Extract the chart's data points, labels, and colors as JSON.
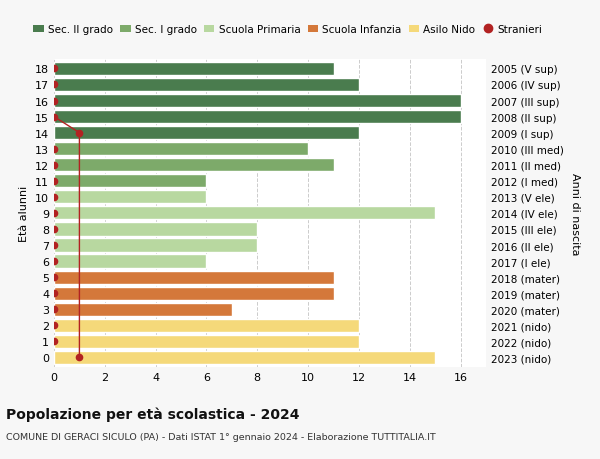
{
  "ages": [
    18,
    17,
    16,
    15,
    14,
    13,
    12,
    11,
    10,
    9,
    8,
    7,
    6,
    5,
    4,
    3,
    2,
    1,
    0
  ],
  "years": [
    "2005 (V sup)",
    "2006 (IV sup)",
    "2007 (III sup)",
    "2008 (II sup)",
    "2009 (I sup)",
    "2010 (III med)",
    "2011 (II med)",
    "2012 (I med)",
    "2013 (V ele)",
    "2014 (IV ele)",
    "2015 (III ele)",
    "2016 (II ele)",
    "2017 (I ele)",
    "2018 (mater)",
    "2019 (mater)",
    "2020 (mater)",
    "2021 (nido)",
    "2022 (nido)",
    "2023 (nido)"
  ],
  "bar_values": [
    11,
    12,
    16,
    16,
    12,
    10,
    11,
    6,
    6,
    15,
    8,
    8,
    6,
    11,
    11,
    7,
    12,
    12,
    15
  ],
  "bar_colors": [
    "#4a7c4e",
    "#4a7c4e",
    "#4a7c4e",
    "#4a7c4e",
    "#4a7c4e",
    "#7daa6a",
    "#7daa6a",
    "#7daa6a",
    "#b8d8a0",
    "#b8d8a0",
    "#b8d8a0",
    "#b8d8a0",
    "#b8d8a0",
    "#d4783a",
    "#d4783a",
    "#d4783a",
    "#f5d97a",
    "#f5d97a",
    "#f5d97a"
  ],
  "stranieri_values": [
    0,
    0,
    0,
    0,
    1,
    0,
    0,
    0,
    0,
    0,
    0,
    0,
    0,
    0,
    0,
    0,
    0,
    0,
    1
  ],
  "stranieri_line_x": [
    0,
    1,
    1
  ],
  "stranieri_line_y": [
    15,
    14,
    0
  ],
  "legend_labels": [
    "Sec. II grado",
    "Sec. I grado",
    "Scuola Primaria",
    "Scuola Infanzia",
    "Asilo Nido",
    "Stranieri"
  ],
  "legend_colors": [
    "#4a7c4e",
    "#7daa6a",
    "#b8d8a0",
    "#d4783a",
    "#f5d97a",
    "#b22222"
  ],
  "title": "Popolazione per età scolastica - 2024",
  "subtitle": "COMUNE DI GERACI SICULO (PA) - Dati ISTAT 1° gennaio 2024 - Elaborazione TUTTITALIA.IT",
  "ylabel_left": "Età alunni",
  "ylabel_right": "Anni di nascita",
  "xlim": [
    0,
    17
  ],
  "ylim": [
    -0.6,
    18.6
  ],
  "xticks": [
    0,
    2,
    4,
    6,
    8,
    10,
    12,
    14,
    16
  ],
  "bg_color": "#f7f7f7",
  "plot_bg_color": "#ffffff",
  "bar_height": 0.82,
  "stranieri_dot_color": "#b22222"
}
